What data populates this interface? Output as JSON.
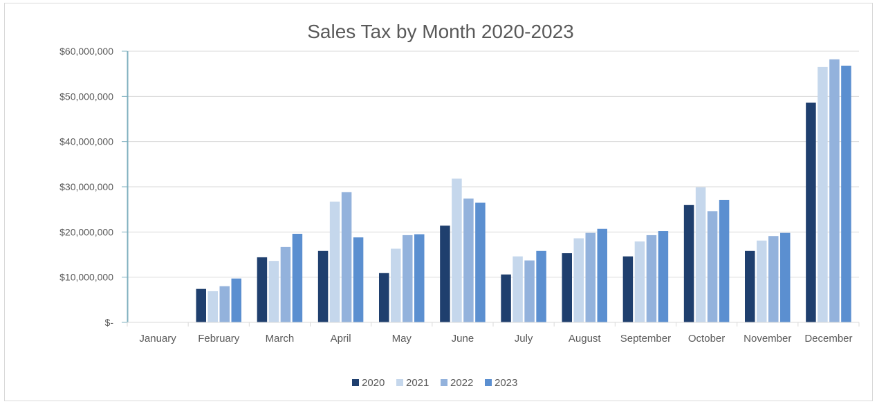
{
  "chart_data": {
    "type": "bar",
    "title": "Sales Tax by Month 2020-2023",
    "xlabel": "",
    "ylabel": "",
    "ylim": [
      0,
      60000000
    ],
    "yticks": [
      0,
      10000000,
      20000000,
      30000000,
      40000000,
      50000000,
      60000000
    ],
    "ytick_labels": [
      "$-",
      "$10,000,000",
      "$20,000,000",
      "$30,000,000",
      "$40,000,000",
      "$50,000,000",
      "$60,000,000"
    ],
    "grid": true,
    "legend_position": "bottom",
    "categories": [
      "January",
      "February",
      "March",
      "April",
      "May",
      "June",
      "July",
      "August",
      "September",
      "October",
      "November",
      "December"
    ],
    "series": [
      {
        "name": "2020",
        "color": "#1f3f6e",
        "values": [
          0,
          7400000,
          14400000,
          15800000,
          10900000,
          21400000,
          10600000,
          15300000,
          14600000,
          26000000,
          15800000,
          48600000
        ]
      },
      {
        "name": "2021",
        "color": "#c5d7ec",
        "values": [
          0,
          6900000,
          13600000,
          26700000,
          16300000,
          31800000,
          14600000,
          18600000,
          17900000,
          29900000,
          18100000,
          56500000
        ]
      },
      {
        "name": "2022",
        "color": "#93b2dc",
        "values": [
          0,
          8000000,
          16700000,
          28800000,
          19300000,
          27400000,
          13700000,
          19800000,
          19300000,
          24600000,
          19100000,
          58200000
        ]
      },
      {
        "name": "2023",
        "color": "#5b8fd0",
        "values": [
          0,
          9700000,
          19600000,
          18800000,
          19500000,
          26500000,
          15800000,
          20700000,
          20200000,
          27100000,
          19800000,
          56800000
        ]
      }
    ]
  }
}
